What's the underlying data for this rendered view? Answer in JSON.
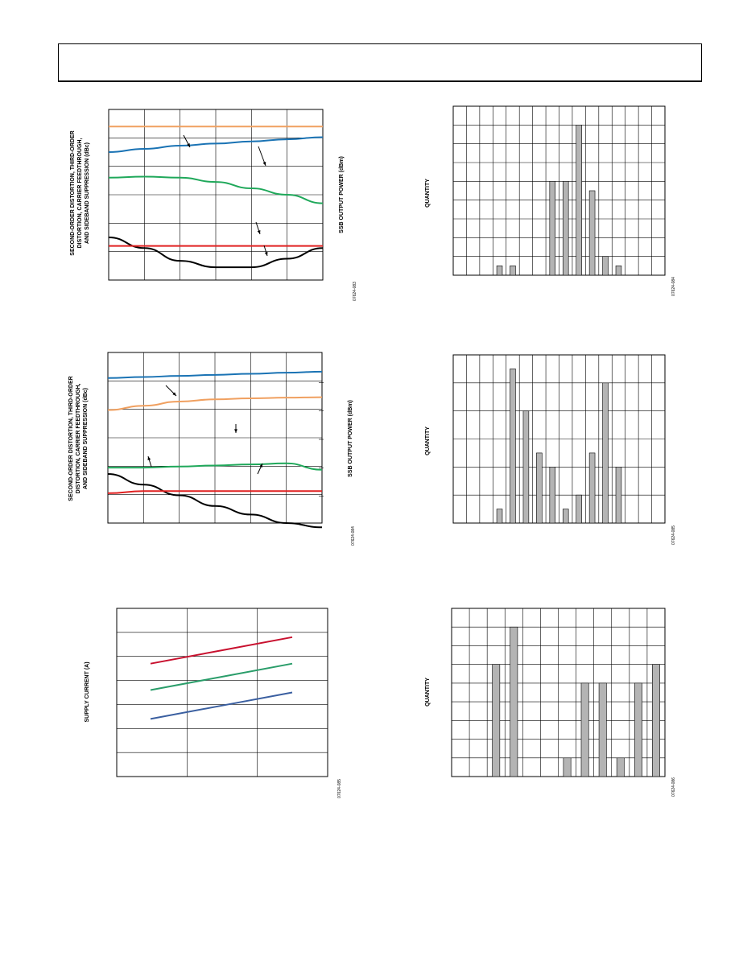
{
  "chart_data": [
    {
      "id": "chart1",
      "type": "line",
      "ylabel": "SECOND-ORDER DISTORTION, THIRD-ORDER DISTORTION, CARRIER FEEDTHROUGH, AND SIDEBAND SUPPRESSION (dBc)",
      "y2label": "SSB OUTPUT POWER (dBm)",
      "figure_code": "07624-083",
      "series": [
        {
          "color": "#1a73b4",
          "values": [
            80,
            81.5,
            83,
            84,
            85,
            86,
            87
          ]
        },
        {
          "color": "#f0a060",
          "values": [
            92,
            92,
            92,
            92,
            92,
            92,
            92
          ]
        },
        {
          "color": "#1fa85a",
          "values": [
            68,
            68.5,
            68,
            66,
            63,
            60,
            56
          ]
        },
        {
          "color": "#000000",
          "values": [
            40,
            35,
            29,
            26,
            26,
            30,
            35
          ]
        },
        {
          "color": "#e02020",
          "values": [
            36,
            36,
            36,
            36,
            36,
            36,
            36
          ]
        }
      ]
    },
    {
      "id": "chart2",
      "type": "bar",
      "ylabel": "QUANTITY",
      "figure_code": "07624-084",
      "values": [
        0,
        0,
        0,
        1,
        1,
        0,
        0,
        10,
        10,
        16,
        9,
        2,
        1,
        0,
        0,
        0
      ],
      "ylim": [
        0,
        18
      ]
    },
    {
      "id": "chart3",
      "type": "line",
      "ylabel": "SECOND-ORDER DISTORTION, THIRD-ORDER DISTORTION, CARRIER FEEDTHROUGH, AND SIDEBAND SUPPRESSION (dBc)",
      "y2label": "SSB OUTPUT POWER (dBm)",
      "figure_code": "07624-084",
      "series": [
        {
          "color": "#1a73b4",
          "values": [
            88,
            88.5,
            89,
            89.5,
            90,
            90.5,
            91
          ]
        },
        {
          "color": "#f0a060",
          "values": [
            73,
            75,
            77,
            78,
            78.5,
            78.8,
            79
          ]
        },
        {
          "color": "#1fa85a",
          "values": [
            46,
            46,
            46.5,
            47,
            47.5,
            48,
            45
          ]
        },
        {
          "color": "#000000",
          "values": [
            43,
            38,
            33,
            28,
            24,
            20,
            18
          ]
        },
        {
          "color": "#e02020",
          "values": [
            34,
            35,
            35,
            35,
            35,
            35,
            35
          ]
        }
      ]
    },
    {
      "id": "chart4",
      "type": "bar",
      "ylabel": "QUANTITY",
      "figure_code": "07624-085",
      "values": [
        0,
        0,
        0,
        1,
        11,
        8,
        5,
        4,
        1,
        2,
        5,
        10,
        4,
        0,
        0,
        0
      ],
      "ylim": [
        0,
        12
      ]
    },
    {
      "id": "chart5",
      "type": "line",
      "ylabel": "SUPPLY CURRENT (A)",
      "figure_code": "07624-085",
      "x": [
        0,
        1,
        2
      ],
      "series": [
        {
          "color": "#c8102e",
          "values": [
            4.7,
            5.25,
            5.8
          ]
        },
        {
          "color": "#2a9d6a",
          "values": [
            3.6,
            4.15,
            4.7
          ]
        },
        {
          "color": "#3a5fa0",
          "values": [
            2.4,
            2.95,
            3.5
          ]
        }
      ],
      "ylim": [
        0,
        7
      ]
    },
    {
      "id": "chart6",
      "type": "bar",
      "ylabel": "QUANTITY",
      "figure_code": "07624-086",
      "values": [
        0,
        0,
        6,
        8,
        0,
        0,
        1,
        5,
        5,
        1,
        5,
        6
      ],
      "ylim": [
        0,
        9
      ]
    }
  ]
}
